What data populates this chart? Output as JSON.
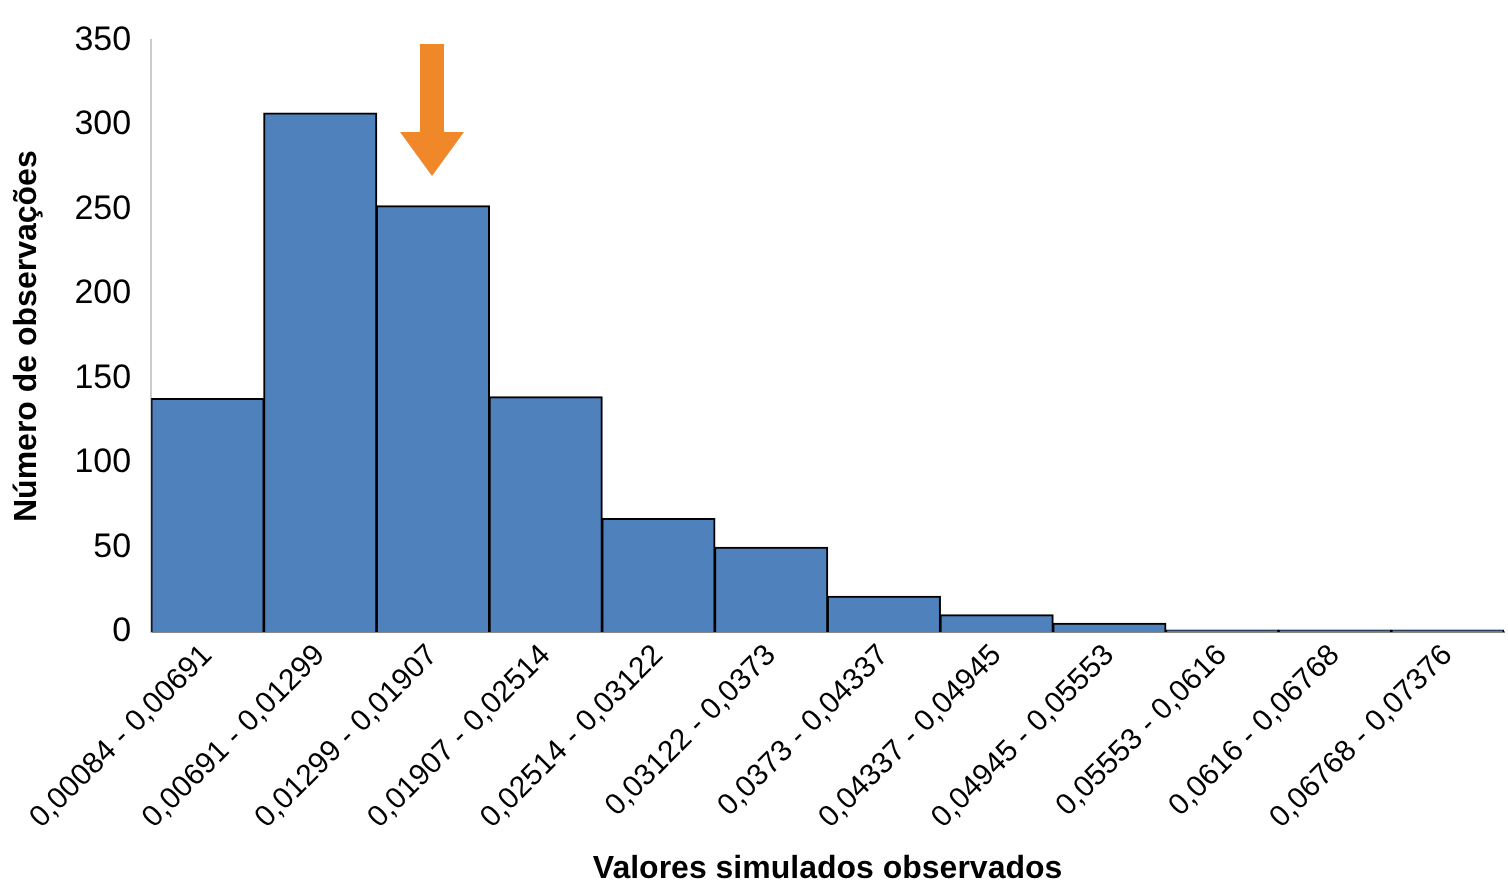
{
  "chart_data": {
    "type": "bar",
    "xlabel": "Valores simulados observados",
    "ylabel": "Número de observações",
    "categories": [
      "0,00084 - 0,00691",
      "0,00691 - 0,01299",
      "0,01299 - 0,01907",
      "0,01907 - 0,02514",
      "0,02514 - 0,03122",
      "0,03122 - 0,0373",
      "0,0373 - 0,04337",
      "0,04337 - 0,04945",
      "0,04945 - 0,05553",
      "0,05553 - 0,0616",
      "0,0616 - 0,06768",
      "0,06768 - 0,07376"
    ],
    "values": [
      138,
      307,
      252,
      139,
      67,
      50,
      21,
      10,
      5,
      1,
      1,
      1
    ],
    "color": "#4f81bd",
    "ylim": [
      0,
      350
    ],
    "yticks": [
      0,
      50,
      100,
      150,
      200,
      250,
      300,
      350
    ],
    "grid": false,
    "legend": false
  }
}
